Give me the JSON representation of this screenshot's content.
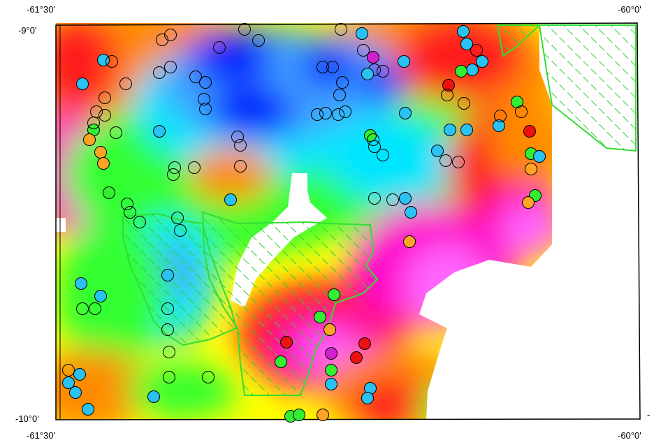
{
  "map": {
    "corner_labels": {
      "top_left_lon": "-61°30'",
      "top_right_lon": "-60°0'",
      "bottom_left_lon": "-61°30'",
      "bottom_right_lon": "-60°0'",
      "top_lat": "-9°0'",
      "bottom_lat": "-10°0'",
      "right_tick_mark": "-"
    },
    "colors": {
      "pink": "#ff66ff",
      "magenta": "#ff00cc",
      "red": "#ff1a1a",
      "orange": "#ff8a00",
      "yellow": "#ffff00",
      "green": "#33ff33",
      "cyan": "#00e5ff",
      "light_blue": "#3fa0ff",
      "blue": "#0022ff",
      "hatch_line": "#33cc33"
    },
    "filled_markers": {
      "cyan": "#29c2f2",
      "green": "#33ee33",
      "orange": "#ffa424",
      "red": "#ee1111",
      "magenta": "#d020d0"
    }
  }
}
